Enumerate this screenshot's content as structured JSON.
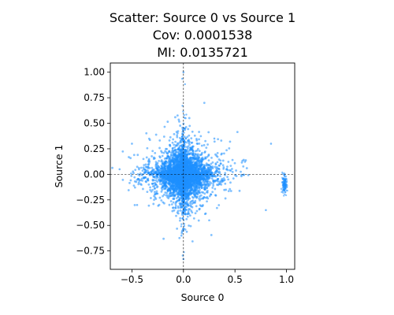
{
  "chart_data": {
    "type": "scatter",
    "title_lines": [
      "Scatter: Source 0 vs Source 1",
      "Cov: 0.0001538",
      "MI: 0.0135721"
    ],
    "xlabel": "Source 0",
    "ylabel": "Source 1",
    "xlim": [
      -0.71,
      1.08
    ],
    "ylim": [
      -0.93,
      1.09
    ],
    "x_ticks": [
      -0.5,
      0.0,
      0.5,
      1.0
    ],
    "x_tick_labels": [
      "−0.5",
      "0.0",
      "0.5",
      "1.0"
    ],
    "y_ticks": [
      -0.75,
      -0.5,
      -0.25,
      0.0,
      0.25,
      0.5,
      0.75,
      1.0
    ],
    "y_tick_labels": [
      "−0.75",
      "−0.50",
      "−0.25",
      "0.00",
      "0.25",
      "0.50",
      "0.75",
      "1.00"
    ],
    "reference_lines": {
      "x": 0.0,
      "y": 0.0,
      "style": "dashed",
      "color": "#000000"
    },
    "series": [
      {
        "marker_color": "#1e90ff",
        "note_points": [
          [
            0.0,
            1.0
          ],
          [
            0.0,
            -0.83
          ],
          [
            1.0,
            -0.1
          ],
          [
            -0.62,
            0.05
          ],
          [
            0.02,
            0.55
          ],
          [
            -0.02,
            -0.6
          ],
          [
            0.85,
            0.3
          ],
          [
            0.8,
            -0.35
          ],
          [
            -0.5,
            0.3
          ],
          [
            -0.45,
            -0.3
          ],
          [
            0.3,
            0.35
          ],
          [
            0.25,
            -0.45
          ]
        ]
      }
    ],
    "grid": false
  }
}
